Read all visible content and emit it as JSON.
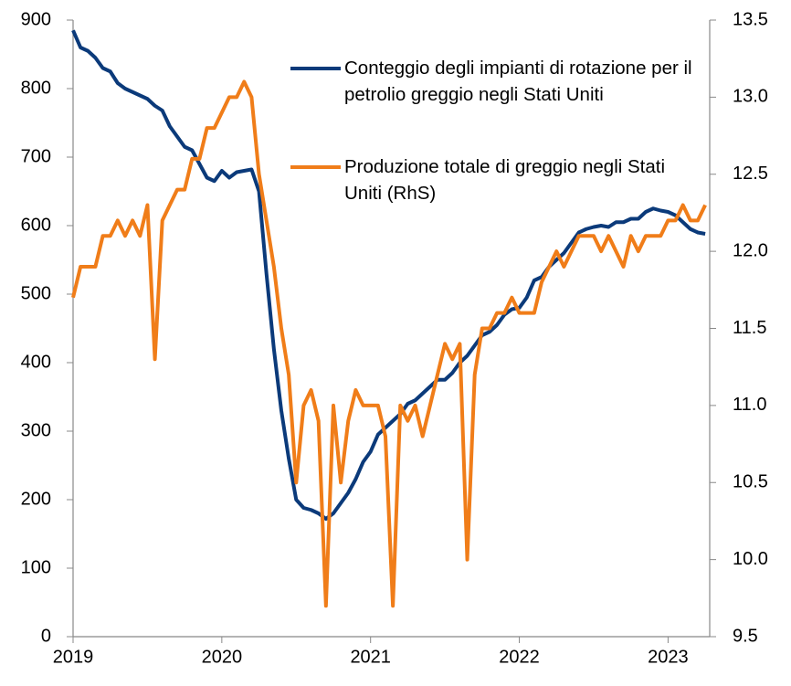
{
  "chart_data": {
    "type": "line",
    "x": [
      2019.0,
      2019.05,
      2019.1,
      2019.15,
      2019.2,
      2019.25,
      2019.3,
      2019.35,
      2019.4,
      2019.45,
      2019.5,
      2019.55,
      2019.6,
      2019.65,
      2019.7,
      2019.75,
      2019.8,
      2019.85,
      2019.9,
      2019.95,
      2020.0,
      2020.05,
      2020.1,
      2020.15,
      2020.2,
      2020.25,
      2020.3,
      2020.35,
      2020.4,
      2020.45,
      2020.5,
      2020.55,
      2020.6,
      2020.65,
      2020.7,
      2020.75,
      2020.8,
      2020.85,
      2020.9,
      2020.95,
      2021.0,
      2021.05,
      2021.1,
      2021.15,
      2021.2,
      2021.25,
      2021.3,
      2021.35,
      2021.4,
      2021.45,
      2021.5,
      2021.55,
      2021.6,
      2021.65,
      2021.7,
      2021.75,
      2021.8,
      2021.85,
      2021.9,
      2021.95,
      2022.0,
      2022.05,
      2022.1,
      2022.15,
      2022.2,
      2022.25,
      2022.3,
      2022.35,
      2022.4,
      2022.45,
      2022.5,
      2022.55,
      2022.6,
      2022.65,
      2022.7,
      2022.75,
      2022.8,
      2022.85,
      2022.9,
      2022.95,
      2023.0,
      2023.05,
      2023.1,
      2023.15,
      2023.2,
      2023.25
    ],
    "series": [
      {
        "name": "Conteggio degli impianti di rotazione per il petrolio greggio negli Stati Uniti",
        "color": "#0b3a7a",
        "values": [
          885,
          860,
          855,
          845,
          830,
          825,
          808,
          800,
          795,
          790,
          785,
          775,
          768,
          745,
          730,
          715,
          710,
          690,
          670,
          665,
          680,
          670,
          678,
          680,
          682,
          650,
          530,
          420,
          330,
          260,
          200,
          188,
          185,
          180,
          172,
          180,
          195,
          210,
          230,
          255,
          270,
          295,
          305,
          315,
          325,
          340,
          345,
          355,
          365,
          375,
          375,
          385,
          400,
          410,
          425,
          440,
          445,
          455,
          470,
          478,
          480,
          495,
          520,
          525,
          540,
          550,
          560,
          575,
          590,
          595,
          598,
          600,
          598,
          605,
          605,
          610,
          610,
          620,
          625,
          622,
          620,
          615,
          605,
          595,
          590,
          588
        ]
      },
      {
        "name": "Produzione totale di greggio negli Stati Uniti (RhS)",
        "color": "#f07d19",
        "axis": "y2",
        "values": [
          11.7,
          11.9,
          11.9,
          11.9,
          12.1,
          12.1,
          12.2,
          12.1,
          12.2,
          12.1,
          12.3,
          11.3,
          12.2,
          12.3,
          12.4,
          12.4,
          12.6,
          12.6,
          12.8,
          12.8,
          12.9,
          13.0,
          13.0,
          13.1,
          13.0,
          12.5,
          12.2,
          11.9,
          11.5,
          11.2,
          10.5,
          11.0,
          11.1,
          10.9,
          9.7,
          11.0,
          10.5,
          10.9,
          11.1,
          11.0,
          11.0,
          11.0,
          10.8,
          9.7,
          11.0,
          10.9,
          11.0,
          10.8,
          11.0,
          11.2,
          11.4,
          11.3,
          11.4,
          10.0,
          11.2,
          11.5,
          11.5,
          11.6,
          11.6,
          11.7,
          11.6,
          11.6,
          11.6,
          11.8,
          11.9,
          12.0,
          11.9,
          12.0,
          12.1,
          12.1,
          12.1,
          12.0,
          12.1,
          12.0,
          11.9,
          12.1,
          12.0,
          12.1,
          12.1,
          12.1,
          12.2,
          12.2,
          12.3,
          12.2,
          12.2,
          12.3
        ]
      }
    ],
    "xlim": [
      2019,
      2023.28
    ],
    "xticks": [
      2019,
      2020,
      2021,
      2022,
      2023
    ],
    "ylim": [
      0,
      900
    ],
    "yticks": [
      0,
      100,
      200,
      300,
      400,
      500,
      600,
      700,
      800,
      900
    ],
    "y2lim": [
      9.5,
      13.5
    ],
    "y2ticks": [
      9.5,
      {
        "value": 10,
        "label": "10.0"
      },
      10.5,
      {
        "value": 11,
        "label": "11.0"
      },
      11.5,
      {
        "value": 12,
        "label": "12.0"
      },
      12.5,
      {
        "value": 13,
        "label": "13.0"
      },
      13.5
    ],
    "grid": false
  }
}
